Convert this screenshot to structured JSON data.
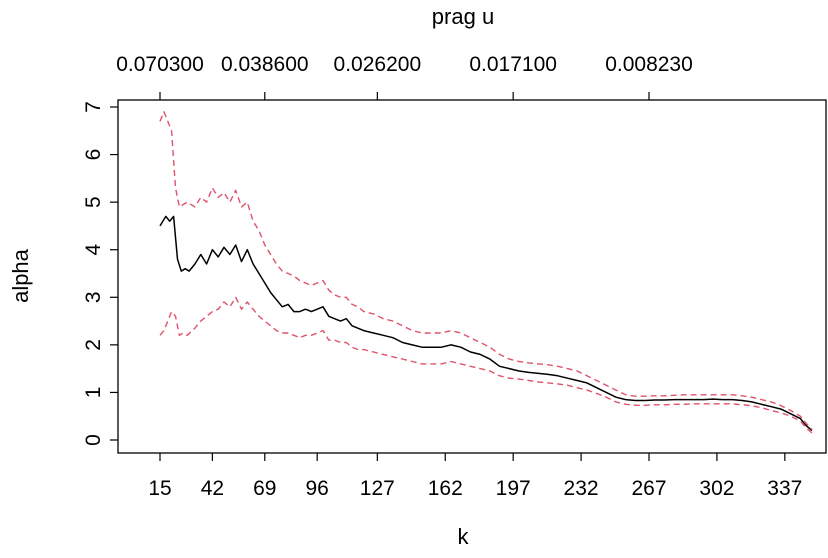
{
  "chart_data": {
    "type": "line",
    "title": "",
    "xlabel": "k",
    "ylabel": "alpha",
    "top_axis_label": "prag u",
    "x_ticks": [
      15,
      42,
      69,
      96,
      127,
      162,
      197,
      232,
      267,
      302,
      337
    ],
    "x_tick_labels": [
      "15",
      "42",
      "69",
      "96",
      "127",
      "162",
      "197",
      "232",
      "267",
      "302",
      "337"
    ],
    "top_ticks": [
      15,
      69,
      127,
      197,
      267
    ],
    "top_tick_labels": [
      "0.070300",
      "0.038600",
      "0.026200",
      "0.017100",
      "0.008230"
    ],
    "y_ticks": [
      0,
      1,
      2,
      3,
      4,
      5,
      6,
      7
    ],
    "y_tick_labels": [
      "0",
      "1",
      "2",
      "3",
      "4",
      "5",
      "6",
      "7"
    ],
    "xlim": [
      15,
      351
    ],
    "ylim": [
      0,
      7
    ],
    "grid": false,
    "series": [
      {
        "role": "estimate",
        "color": "#000000",
        "dash": false,
        "x": [
          15,
          18,
          20,
          22,
          24,
          26,
          28,
          30,
          33,
          36,
          39,
          42,
          45,
          48,
          51,
          54,
          57,
          60,
          63,
          66,
          69,
          72,
          75,
          78,
          81,
          84,
          87,
          90,
          93,
          96,
          99,
          102,
          105,
          108,
          111,
          114,
          117,
          120,
          125,
          130,
          135,
          140,
          145,
          150,
          155,
          160,
          165,
          170,
          175,
          180,
          185,
          190,
          195,
          200,
          205,
          210,
          215,
          220,
          225,
          230,
          235,
          240,
          245,
          250,
          255,
          260,
          265,
          270,
          275,
          280,
          285,
          290,
          295,
          300,
          305,
          310,
          315,
          320,
          325,
          330,
          335,
          340,
          345,
          348,
          351
        ],
        "y": [
          4.5,
          4.7,
          4.6,
          4.7,
          3.8,
          3.55,
          3.6,
          3.55,
          3.7,
          3.9,
          3.7,
          4.0,
          3.85,
          4.05,
          3.9,
          4.1,
          3.75,
          4.0,
          3.7,
          3.5,
          3.3,
          3.1,
          2.95,
          2.8,
          2.85,
          2.7,
          2.7,
          2.75,
          2.7,
          2.75,
          2.8,
          2.6,
          2.55,
          2.5,
          2.55,
          2.4,
          2.35,
          2.3,
          2.25,
          2.2,
          2.15,
          2.05,
          2.0,
          1.95,
          1.95,
          1.95,
          2.0,
          1.95,
          1.85,
          1.8,
          1.7,
          1.55,
          1.5,
          1.45,
          1.42,
          1.4,
          1.38,
          1.35,
          1.3,
          1.25,
          1.2,
          1.1,
          1.0,
          0.9,
          0.85,
          0.83,
          0.83,
          0.84,
          0.84,
          0.85,
          0.85,
          0.85,
          0.85,
          0.86,
          0.85,
          0.85,
          0.83,
          0.8,
          0.75,
          0.7,
          0.65,
          0.55,
          0.45,
          0.3,
          0.2
        ]
      },
      {
        "role": "upper-band",
        "color": "#df536b",
        "dash": true,
        "x": [
          15,
          17,
          19,
          21,
          23,
          25,
          27,
          29,
          33,
          36,
          39,
          42,
          45,
          48,
          51,
          54,
          57,
          60,
          63,
          66,
          69,
          72,
          75,
          78,
          81,
          84,
          87,
          90,
          93,
          96,
          99,
          102,
          105,
          108,
          111,
          114,
          117,
          120,
          125,
          130,
          135,
          140,
          145,
          150,
          155,
          160,
          165,
          170,
          175,
          180,
          185,
          190,
          195,
          200,
          205,
          210,
          215,
          220,
          225,
          230,
          235,
          240,
          245,
          250,
          255,
          260,
          265,
          270,
          275,
          280,
          285,
          290,
          295,
          300,
          305,
          310,
          315,
          320,
          325,
          330,
          335,
          340,
          345,
          348,
          351
        ],
        "y": [
          6.7,
          6.9,
          6.7,
          6.5,
          5.3,
          4.9,
          4.95,
          5.0,
          4.9,
          5.1,
          5.0,
          5.3,
          5.1,
          5.2,
          5.0,
          5.25,
          4.9,
          5.0,
          4.6,
          4.4,
          4.1,
          3.9,
          3.7,
          3.55,
          3.5,
          3.45,
          3.35,
          3.3,
          3.25,
          3.3,
          3.35,
          3.15,
          3.05,
          3.0,
          3.0,
          2.85,
          2.8,
          2.7,
          2.65,
          2.55,
          2.5,
          2.4,
          2.3,
          2.25,
          2.25,
          2.25,
          2.3,
          2.25,
          2.15,
          2.05,
          1.95,
          1.8,
          1.7,
          1.65,
          1.62,
          1.6,
          1.58,
          1.55,
          1.5,
          1.45,
          1.35,
          1.25,
          1.15,
          1.05,
          0.95,
          0.92,
          0.92,
          0.93,
          0.93,
          0.94,
          0.95,
          0.95,
          0.95,
          0.95,
          0.95,
          0.95,
          0.93,
          0.9,
          0.85,
          0.8,
          0.72,
          0.62,
          0.5,
          0.35,
          0.22
        ]
      },
      {
        "role": "lower-band",
        "color": "#df536b",
        "dash": true,
        "x": [
          15,
          17,
          19,
          21,
          23,
          25,
          27,
          29,
          33,
          36,
          39,
          42,
          45,
          48,
          51,
          54,
          57,
          60,
          63,
          66,
          69,
          72,
          75,
          78,
          81,
          84,
          87,
          90,
          93,
          96,
          99,
          102,
          105,
          108,
          111,
          114,
          117,
          120,
          125,
          130,
          135,
          140,
          145,
          150,
          155,
          160,
          165,
          170,
          175,
          180,
          185,
          190,
          195,
          200,
          205,
          210,
          215,
          220,
          225,
          230,
          235,
          240,
          245,
          250,
          255,
          260,
          265,
          270,
          275,
          280,
          285,
          290,
          295,
          300,
          305,
          310,
          315,
          320,
          325,
          330,
          335,
          340,
          345,
          348,
          351
        ],
        "y": [
          2.2,
          2.3,
          2.5,
          2.7,
          2.6,
          2.2,
          2.25,
          2.2,
          2.35,
          2.5,
          2.6,
          2.7,
          2.75,
          2.9,
          2.8,
          3.0,
          2.75,
          2.9,
          2.75,
          2.6,
          2.5,
          2.4,
          2.3,
          2.25,
          2.25,
          2.2,
          2.15,
          2.2,
          2.2,
          2.25,
          2.3,
          2.1,
          2.1,
          2.05,
          2.05,
          1.95,
          1.9,
          1.9,
          1.85,
          1.8,
          1.75,
          1.7,
          1.65,
          1.6,
          1.6,
          1.6,
          1.65,
          1.6,
          1.55,
          1.5,
          1.45,
          1.35,
          1.3,
          1.28,
          1.25,
          1.22,
          1.2,
          1.18,
          1.15,
          1.1,
          1.05,
          0.98,
          0.9,
          0.8,
          0.75,
          0.73,
          0.73,
          0.74,
          0.74,
          0.75,
          0.75,
          0.76,
          0.76,
          0.76,
          0.76,
          0.76,
          0.74,
          0.72,
          0.68,
          0.62,
          0.57,
          0.5,
          0.4,
          0.25,
          0.15
        ]
      }
    ]
  }
}
